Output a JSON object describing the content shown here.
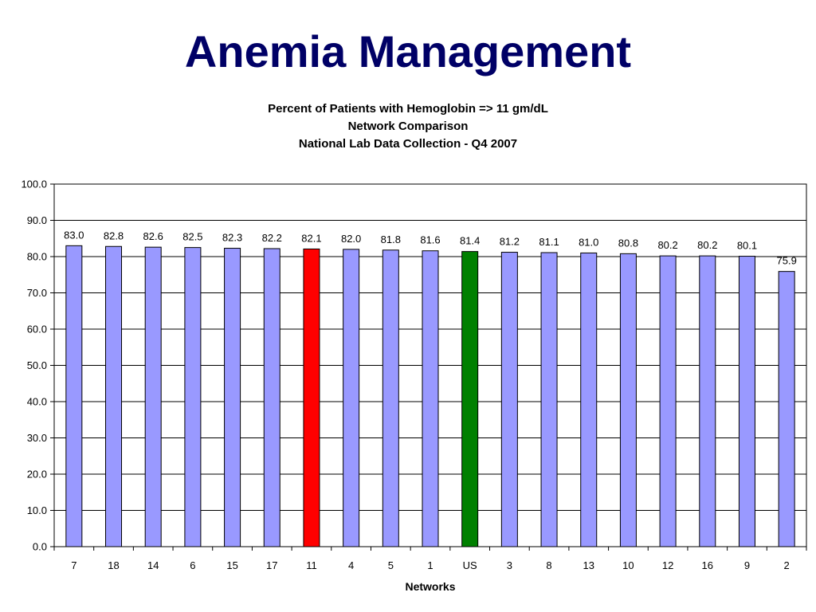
{
  "slide": {
    "title": "Anemia Management"
  },
  "chart_data": {
    "type": "bar",
    "title_lines": [
      "Percent of Patients with Hemoglobin => 11 gm/dL",
      "Network Comparison",
      "National Lab Data Collection - Q4 2007"
    ],
    "xlabel": "Networks",
    "ylabel": "",
    "ylim": [
      0,
      100
    ],
    "ytick_step": 10,
    "ytick_labels": [
      "0.0",
      "10.0",
      "20.0",
      "30.0",
      "40.0",
      "50.0",
      "60.0",
      "70.0",
      "80.0",
      "90.0",
      "100.0"
    ],
    "grid": true,
    "legend": "none",
    "categories": [
      "7",
      "18",
      "14",
      "6",
      "15",
      "17",
      "11",
      "4",
      "5",
      "1",
      "US",
      "3",
      "8",
      "13",
      "10",
      "12",
      "16",
      "9",
      "2"
    ],
    "values": [
      83.0,
      82.8,
      82.6,
      82.5,
      82.3,
      82.2,
      82.1,
      82.0,
      81.8,
      81.6,
      81.4,
      81.2,
      81.1,
      81.0,
      80.8,
      80.2,
      80.2,
      80.1,
      75.9
    ],
    "value_labels": [
      "83.0",
      "82.8",
      "82.6",
      "82.5",
      "82.3",
      "82.2",
      "82.1",
      "82.0",
      "81.8",
      "81.6",
      "81.4",
      "81.2",
      "81.1",
      "81.0",
      "80.8",
      "80.2",
      "80.2",
      "80.1",
      "75.9"
    ],
    "colors": {
      "default_bar": "#9999ff",
      "highlight_bar": "#ff0000",
      "us_bar": "#008000",
      "bar_outline": "#000000",
      "title": "#000066"
    },
    "highlight_category": "11",
    "us_category": "US"
  }
}
